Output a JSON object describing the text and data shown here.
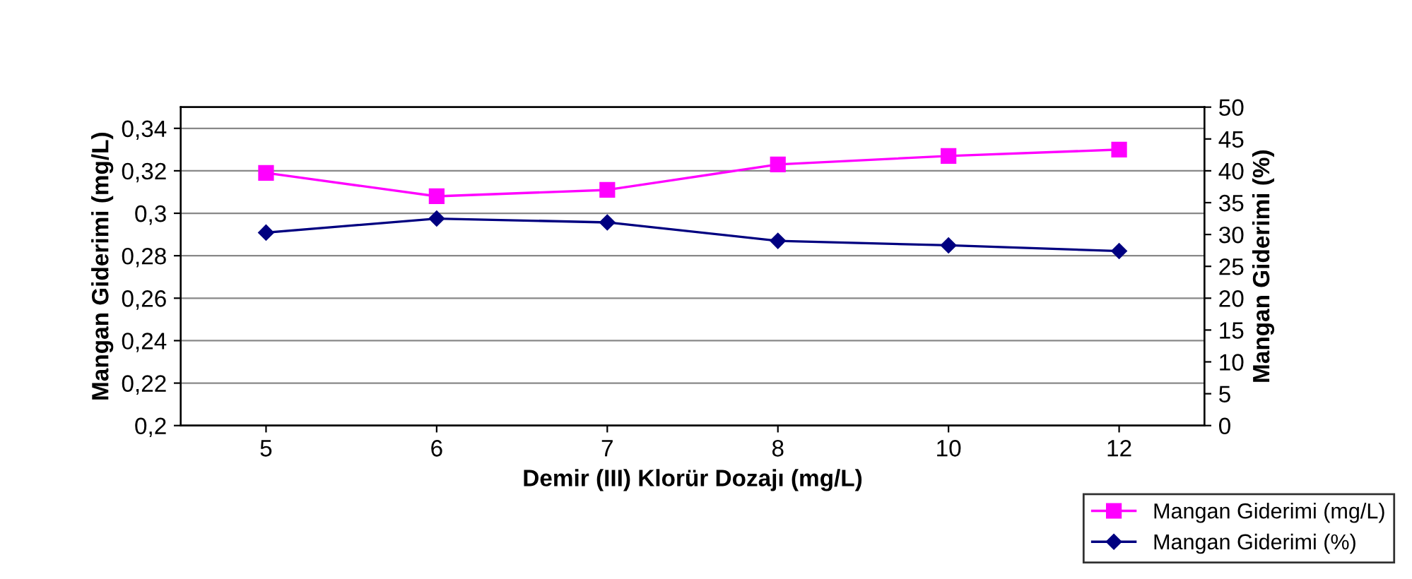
{
  "chart_data": {
    "type": "line",
    "xlabel": "Demir (III) Klorür Dozajı (mg/L)",
    "ylabel": "Mangan Giderimi (mg/L)",
    "y2label": "Mangan Giderimi (%)",
    "categories": [
      "5",
      "6",
      "7",
      "8",
      "10",
      "12"
    ],
    "series": [
      {
        "name": "Mangan Giderimi (mg/L)",
        "color": "#ff00ff",
        "marker": "square",
        "values": [
          0.319,
          0.308,
          0.311,
          0.323,
          0.327,
          0.33
        ]
      },
      {
        "name": "Mangan Giderimi (%)",
        "color": "#000080",
        "marker": "diamond",
        "axis": "y2",
        "values": [
          30.3,
          32.5,
          31.9,
          29.0,
          28.3,
          27.4
        ]
      }
    ],
    "ylim": [
      0.2,
      0.35
    ],
    "yticks": [
      {
        "value": 0.2,
        "label": "0,2"
      },
      {
        "value": 0.22,
        "label": "0,22"
      },
      {
        "value": 0.24,
        "label": "0,24"
      },
      {
        "value": 0.26,
        "label": "0,26"
      },
      {
        "value": 0.28,
        "label": "0,28"
      },
      {
        "value": 0.3,
        "label": "0,3"
      },
      {
        "value": 0.32,
        "label": "0,32"
      },
      {
        "value": 0.34,
        "label": "0,34"
      }
    ],
    "y2lim": [
      0,
      50
    ],
    "y2ticks": [
      0,
      5,
      10,
      15,
      20,
      25,
      30,
      35,
      40,
      45,
      50
    ],
    "grid": "y",
    "legend": "bottom right"
  }
}
